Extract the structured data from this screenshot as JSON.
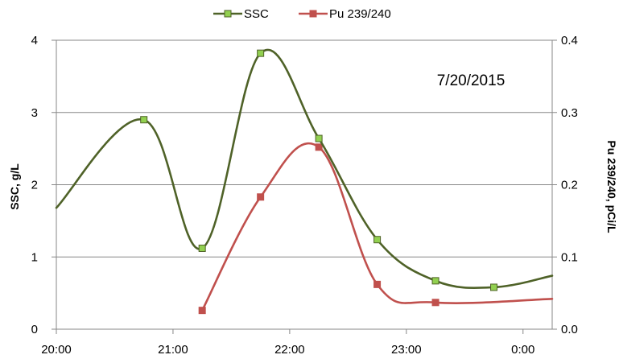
{
  "chart_data": {
    "type": "line",
    "annotation": "7/20/2015",
    "x_ticks": [
      "20:00",
      "21:00",
      "22:00",
      "23:00",
      "0:00"
    ],
    "x_tick_hours": [
      20,
      21,
      22,
      23,
      24
    ],
    "x_range_hours": [
      20,
      24.25
    ],
    "y_left": {
      "label": "SSC, g/L",
      "range": [
        0,
        4
      ],
      "ticks": [
        0,
        1,
        2,
        3,
        4
      ]
    },
    "y_right": {
      "label": "Pu 239/240, pCi/L",
      "range": [
        0,
        0.4
      ],
      "ticks": [
        "0.0",
        "0.1",
        "0.2",
        "0.3",
        "0.4"
      ]
    },
    "grid": "horizontal",
    "legend_position": "top-center",
    "series": [
      {
        "name": "SSC",
        "axis": "left",
        "color": "#4f6228",
        "marker_color": "#92d050",
        "marker": "square",
        "smooth": true,
        "points": [
          {
            "x": "20:45",
            "y": 2.9
          },
          {
            "x": "21:15",
            "y": 1.12
          },
          {
            "x": "21:45",
            "y": 3.82
          },
          {
            "x": "22:15",
            "y": 2.64
          },
          {
            "x": "22:45",
            "y": 1.24
          },
          {
            "x": "23:15",
            "y": 0.67
          },
          {
            "x": "23:45",
            "y": 0.58
          }
        ]
      },
      {
        "name": "Pu 239/240",
        "axis": "right",
        "color": "#c0504d",
        "marker_color": "#c0504d",
        "marker": "square",
        "smooth": true,
        "points": [
          {
            "x": "21:15",
            "y": 0.026
          },
          {
            "x": "21:45",
            "y": 0.183
          },
          {
            "x": "22:15",
            "y": 0.252
          },
          {
            "x": "22:45",
            "y": 0.062
          },
          {
            "x": "23:15",
            "y": 0.037
          }
        ]
      }
    ]
  }
}
